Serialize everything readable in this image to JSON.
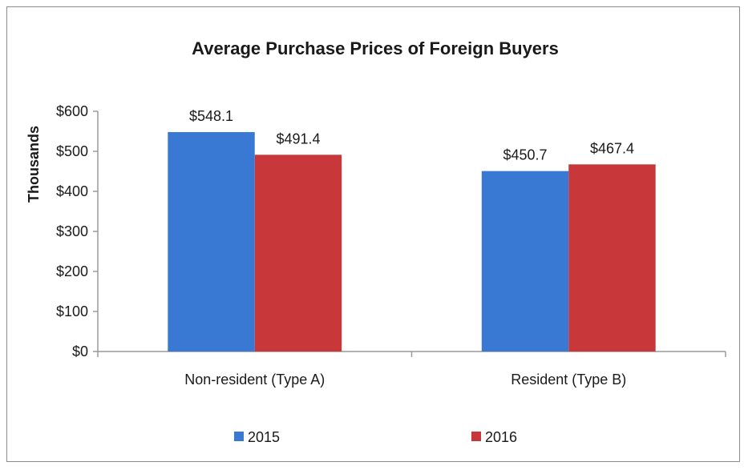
{
  "chart_data": {
    "type": "bar",
    "title": "Average Purchase Prices of Foreign Buyers",
    "ylabel": "Thousands",
    "xlabel": "",
    "categories": [
      "Non-resident (Type A)",
      "Resident (Type B)"
    ],
    "series": [
      {
        "name": "2015",
        "values": [
          548.1,
          450.7
        ],
        "labels": [
          "$548.1",
          "$450.7"
        ],
        "color": "#3a79d3"
      },
      {
        "name": "2016",
        "values": [
          491.4,
          467.4
        ],
        "labels": [
          "$491.4",
          "$467.4"
        ],
        "color": "#c8383a"
      }
    ],
    "ylim": [
      0,
      600
    ],
    "yticks": [
      0,
      100,
      200,
      300,
      400,
      500,
      600
    ],
    "ytick_labels": [
      "$0",
      "$100",
      "$200",
      "$300",
      "$400",
      "$500",
      "$600"
    ],
    "grid": false,
    "legend_position": "bottom"
  }
}
